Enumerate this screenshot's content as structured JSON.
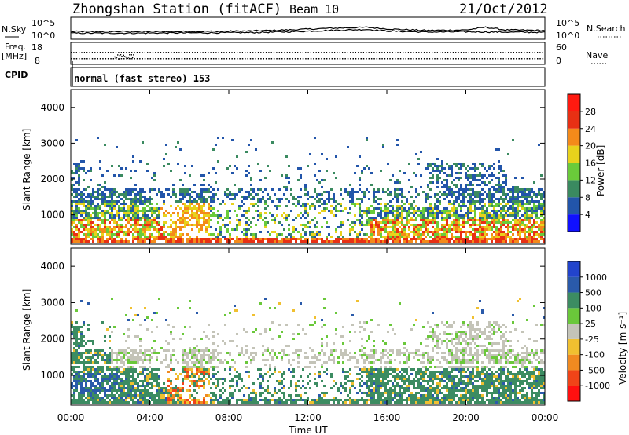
{
  "header": {
    "station": "Zhongshan Station (fitACF)",
    "beam": "Beam 10",
    "date": "21/Oct/2012"
  },
  "chart_data": [
    {
      "type": "line",
      "name": "noise",
      "left_label": "N.Sky",
      "right_label": "N.Search",
      "left_ticks": [
        "10^5",
        "10^0"
      ],
      "right_ticks": [
        "10^5",
        "10^0"
      ],
      "x_range_hours": [
        0,
        24
      ],
      "series": [
        {
          "x": [
            0,
            3,
            6,
            9,
            11,
            13,
            15,
            16,
            18,
            20,
            21,
            22,
            24
          ],
          "values": [
            2.0,
            2.0,
            2.0,
            2.2,
            2.6,
            3.2,
            3.6,
            3.0,
            2.4,
            2.6,
            3.6,
            2.6,
            2.4
          ]
        },
        {
          "x": [
            0,
            3,
            6,
            9,
            11,
            13,
            15,
            16,
            18,
            20,
            22,
            24
          ],
          "values": [
            1.4,
            1.4,
            1.5,
            1.6,
            1.9,
            2.4,
            2.8,
            2.2,
            1.8,
            1.9,
            1.8,
            1.7
          ]
        }
      ]
    },
    {
      "type": "scatter",
      "name": "frequency",
      "left_label": "Freq. [MHz]",
      "left_ticks": [
        "18",
        "8"
      ],
      "right_label": "Nave",
      "right_ticks": [
        "60",
        "0"
      ],
      "cpid_label": "CPID",
      "cpid_text": "normal (fast stereo) 153"
    },
    {
      "type": "heatmap",
      "name": "power",
      "ylabel": "Slant Range [km]",
      "yticks": [
        1000,
        2000,
        3000,
        4000
      ],
      "ylim": [
        180,
        4500
      ],
      "colorbar_label": "Power [dB]",
      "colorbar_ticks": [
        "4",
        "8",
        "12",
        "16",
        "20",
        "24",
        "28"
      ],
      "colorbar_colors": [
        "#1010ff",
        "#2255aa",
        "#3a8a60",
        "#6acb3a",
        "#e8d21c",
        "#f48a1a",
        "#e83014",
        "#ff1a10"
      ]
    },
    {
      "type": "heatmap",
      "name": "velocity",
      "ylabel": "Slant Range [km]",
      "yticks": [
        1000,
        2000,
        3000,
        4000
      ],
      "ylim": [
        180,
        4500
      ],
      "xlabel": "Time UT",
      "xticks": [
        "00:00",
        "04:00",
        "08:00",
        "12:00",
        "16:00",
        "20:00",
        "00:00"
      ],
      "colorbar_label": "Velocity [m s⁻¹]",
      "colorbar_ticks": [
        "1000",
        "500",
        "100",
        "25",
        "-25",
        "-100",
        "-500",
        "-1000"
      ],
      "colorbar_colors": [
        "#2244cc",
        "#2a5aaa",
        "#3c8c62",
        "#6ac83a",
        "#c4c4b8",
        "#f0c030",
        "#f08a20",
        "#f04418",
        "#ff1010"
      ]
    }
  ],
  "gs_colors": {
    "power_green": "#3c8a5c",
    "power_blue": "#2b52a8",
    "orange": "#f08a1c",
    "red": "#e62a14",
    "grey": "#c8c8bc"
  }
}
